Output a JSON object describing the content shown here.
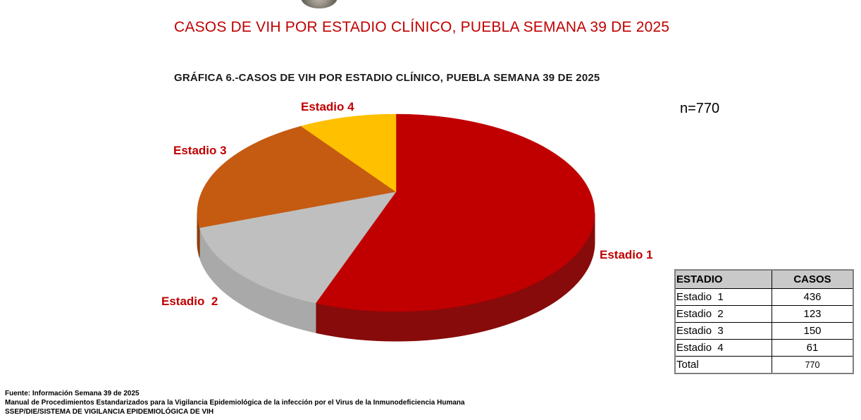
{
  "page": {
    "title": "CASOS DE VIH POR ESTADIO CLÍNICO, PUEBLA SEMANA 39 DE 2025",
    "subtitle": "GRÁFICA 6.-CASOS DE VIH POR ESTADIO CLÍNICO, PUEBLA SEMANA 39 DE 2025",
    "n_label": "n=770"
  },
  "chart_data": {
    "type": "pie",
    "title": "GRÁFICA 6.-CASOS DE VIH POR ESTADIO CLÍNICO, PUEBLA SEMANA 39 DE 2025",
    "categories": [
      "Estadio 1",
      "Estadio  2",
      "Estadio 3",
      "Estadio 4"
    ],
    "values": [
      436,
      123,
      150,
      61
    ],
    "total": 770,
    "colors": [
      "#C00000",
      "#BFBFBF",
      "#C55A11",
      "#FFC000"
    ],
    "side_colors": [
      "#870B0B",
      "#A9A9A9",
      "#8F3E0C",
      "#B78900"
    ],
    "start_angle_deg": 0,
    "direction": "clockwise",
    "style": "3d",
    "legend_position": "none",
    "labels_outside": true,
    "annotation": "n=770"
  },
  "table": {
    "headers": [
      "ESTADIO",
      "CASOS"
    ],
    "rows": [
      [
        "Estadio  1",
        "436"
      ],
      [
        "Estadio  2",
        "123"
      ],
      [
        "Estadio  3",
        "150"
      ],
      [
        "Estadio  4",
        "61"
      ],
      [
        "Total",
        "770"
      ]
    ],
    "header_bg": "#C9C9C9"
  },
  "footer": {
    "line1": "Fuente: Información Semana 39 de 2025",
    "line2": "Manual de Procedimientos Estandarizados para la Vigilancia Epidemiológica de la infección por el Virus de la Inmunodeficiencia Humana",
    "line3": "SSEP/DIE/SISTEMA DE VIGILANCIA EPIDEMIOLÓGICA DE VIH"
  },
  "colors": {
    "accent_red": "#C00000",
    "text": "#000000",
    "table_header_bg": "#C9C9C9"
  }
}
